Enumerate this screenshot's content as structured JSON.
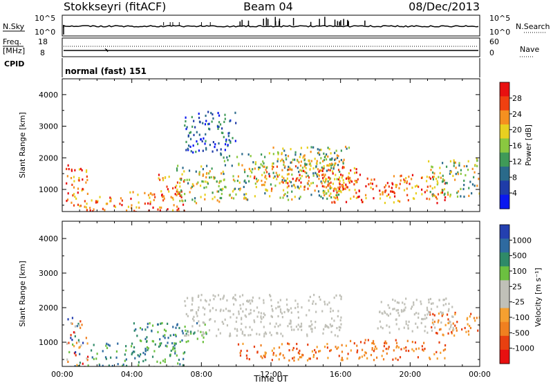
{
  "header": {
    "station": "Stokkseyri (fitACF)",
    "beam": "Beam 04",
    "date": "08/Dec/2013"
  },
  "status_panels": {
    "nsky_label": "N.Sky",
    "nsearch_label": "N.Search",
    "nsky_ticks": [
      "10^5",
      "10^0"
    ],
    "nsearch_ticks": [
      "10^5",
      "10^0"
    ],
    "freq_label": "Freq.",
    "freq_unit": "[MHz]",
    "freq_ticks": [
      "18",
      "8"
    ],
    "nave_label": "Nave",
    "nave_ticks": [
      "60",
      "0"
    ],
    "cpid_label": "CPID",
    "cpid_value": "normal (fast) 151"
  },
  "chart_data": [
    {
      "type": "heatmap",
      "parameter": "power",
      "ylabel": "Slant Range [km]",
      "xlabel": "",
      "xlim_hours": [
        0,
        24
      ],
      "ylim_km": [
        300,
        4500
      ],
      "yticks": [
        "1000",
        "2000",
        "3000",
        "4000"
      ],
      "colorbar_label": "Power [dB]",
      "colorbar_ticks": [
        "28",
        "24",
        "20",
        "16",
        "12",
        "8",
        "4"
      ],
      "colorbar_colors": [
        "#e81010",
        "#f04010",
        "#f59020",
        "#e8d020",
        "#8ac840",
        "#3f9a58",
        "#2a6a8a",
        "#1f3ca8",
        "#0a18f0"
      ],
      "echo_regions": [
        {
          "t": [
            0.2,
            1.5
          ],
          "r": [
            300,
            1800
          ],
          "level": "high"
        },
        {
          "t": [
            1.5,
            3.5
          ],
          "r": [
            300,
            800
          ],
          "level": "high"
        },
        {
          "t": [
            3.5,
            7.0
          ],
          "r": [
            300,
            1000
          ],
          "level": "high"
        },
        {
          "t": [
            5.5,
            7.0
          ],
          "r": [
            800,
            1500
          ],
          "level": "high"
        },
        {
          "t": [
            6.5,
            9.0
          ],
          "r": [
            600,
            1800
          ],
          "level": "medium"
        },
        {
          "t": [
            9.0,
            16.0
          ],
          "r": [
            700,
            2200
          ],
          "level": "medium"
        },
        {
          "t": [
            11.0,
            17.0
          ],
          "r": [
            1000,
            1800
          ],
          "level": "high"
        },
        {
          "t": [
            12.0,
            16.5
          ],
          "r": [
            1800,
            2400
          ],
          "level": "medium"
        },
        {
          "t": [
            15.0,
            22.0
          ],
          "r": [
            600,
            1500
          ],
          "level": "high"
        },
        {
          "t": [
            21.0,
            24.0
          ],
          "r": [
            800,
            2000
          ],
          "level": "medium"
        },
        {
          "t": [
            7.0,
            10.0
          ],
          "r": [
            2200,
            3500
          ],
          "level": "low"
        }
      ]
    },
    {
      "type": "heatmap",
      "parameter": "velocity",
      "ylabel": "Slant Range [km]",
      "xlabel": "Time UT",
      "xlim_hours": [
        0,
        24
      ],
      "ylim_km": [
        300,
        4500
      ],
      "yticks": [
        "1000",
        "2000",
        "3000",
        "4000"
      ],
      "xticks": [
        "00:00",
        "04:00",
        "08:00",
        "12:00",
        "16:00",
        "20:00",
        "00:00"
      ],
      "colorbar_label": "Velocity [m s⁻¹]",
      "colorbar_ticks": [
        "1000",
        "500",
        "100",
        "25",
        "-25",
        "-100",
        "-500",
        "-1000"
      ],
      "colorbar_colors": [
        "#2440b0",
        "#2e6aa0",
        "#2f8a68",
        "#6cc040",
        "#c0c0b8",
        "#c0c0b8",
        "#f5a030",
        "#f08020",
        "#e84010",
        "#e81010"
      ],
      "echo_regions": [
        {
          "t": [
            0.2,
            1.5
          ],
          "r": [
            300,
            1800
          ],
          "level": "mixed"
        },
        {
          "t": [
            1.5,
            7.0
          ],
          "r": [
            300,
            1000
          ],
          "level": "positive"
        },
        {
          "t": [
            4.0,
            8.5
          ],
          "r": [
            1000,
            1600
          ],
          "level": "positive"
        },
        {
          "t": [
            7.0,
            16.0
          ],
          "r": [
            1200,
            2400
          ],
          "level": "near-zero"
        },
        {
          "t": [
            10.0,
            16.0
          ],
          "r": [
            500,
            1000
          ],
          "level": "negative"
        },
        {
          "t": [
            16.0,
            22.0
          ],
          "r": [
            500,
            1100
          ],
          "level": "negative"
        },
        {
          "t": [
            21.0,
            24.0
          ],
          "r": [
            1200,
            1900
          ],
          "level": "negative"
        },
        {
          "t": [
            18.0,
            22.5
          ],
          "r": [
            1300,
            2300
          ],
          "level": "near-zero"
        }
      ]
    }
  ]
}
